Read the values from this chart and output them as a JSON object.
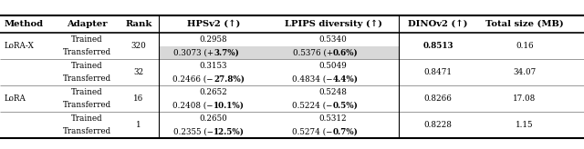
{
  "col_headers": [
    "Method",
    "Adapter",
    "Rank",
    "HPSv2 (↑)",
    "LPIPS diversity (↑)",
    "DINOv2 (↑)",
    "Total size (MB)"
  ],
  "rows": [
    {
      "method": "LoRA-X",
      "adapter_top": "Trained",
      "adapter_bot": "Transferred",
      "rank": "320",
      "hpsv2_top": "0.2958",
      "hpsv2_bot": "0.3073 (+",
      "hpsv2_bot_bold": "3.7%",
      "hpsv2_bot_end": ")",
      "lpips_top": "0.5340",
      "lpips_bot": "0.5376 (+",
      "lpips_bot_bold": "0.6%",
      "lpips_bot_end": ")",
      "dinov2": "0.8513",
      "dinov2_bold": true,
      "total_size": "0.16",
      "highlight_bot": true
    },
    {
      "method": "",
      "adapter_top": "Trained",
      "adapter_bot": "Transferred",
      "rank": "32",
      "hpsv2_top": "0.3153",
      "hpsv2_bot": "0.2466 (−",
      "hpsv2_bot_bold": "27.8%",
      "hpsv2_bot_end": ")",
      "lpips_top": "0.5049",
      "lpips_bot": "0.4834 (−",
      "lpips_bot_bold": "4.4%",
      "lpips_bot_end": ")",
      "dinov2": "0.8471",
      "dinov2_bold": false,
      "total_size": "34.07",
      "highlight_bot": false
    },
    {
      "method": "LoRA",
      "adapter_top": "Trained",
      "adapter_bot": "Transferred",
      "rank": "16",
      "hpsv2_top": "0.2652",
      "hpsv2_bot": "0.2408 (−",
      "hpsv2_bot_bold": "10.1%",
      "hpsv2_bot_end": ")",
      "lpips_top": "0.5248",
      "lpips_bot": "0.5224 (−",
      "lpips_bot_bold": "0.5%",
      "lpips_bot_end": ")",
      "dinov2": "0.8266",
      "dinov2_bold": false,
      "total_size": "17.08",
      "highlight_bot": false
    },
    {
      "method": "",
      "adapter_top": "Trained",
      "adapter_bot": "Transferred",
      "rank": "1",
      "hpsv2_top": "0.2650",
      "hpsv2_bot": "0.2355 (−",
      "hpsv2_bot_bold": "12.5%",
      "hpsv2_bot_end": ")",
      "lpips_top": "0.5312",
      "lpips_bot": "0.5274 (−",
      "lpips_bot_bold": "0.7%",
      "lpips_bot_end": ")",
      "dinov2": "0.8228",
      "dinov2_bold": false,
      "total_size": "1.15",
      "highlight_bot": false
    }
  ],
  "highlight_color": "#d8d8d8",
  "bg_color": "#ffffff"
}
